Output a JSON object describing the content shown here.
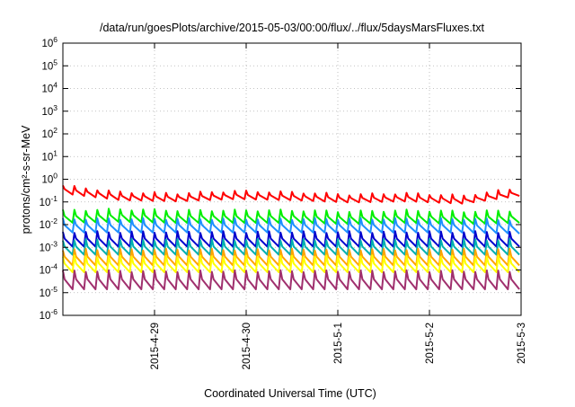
{
  "chart_data": {
    "type": "line",
    "title": "/data/run/goesPlots/archive/2015-05-03/00:00/flux/../flux/5daysMarsFluxes.txt",
    "xlabel": "Coordinated Universal Time (UTC)",
    "ylabel": "protons/cm²-s-sr-MeV",
    "y_scale": "log",
    "ylim_exponents": [
      -6,
      6
    ],
    "y_ticks": [
      "10^-6",
      "10^-5",
      "10^-4",
      "10^-3",
      "10^-2",
      "10^-1",
      "10^0",
      "10^1",
      "10^2",
      "10^3",
      "10^4",
      "10^5",
      "10^6"
    ],
    "x_range_days": [
      "2015-04-28",
      "2015-05-03"
    ],
    "x_ticks": [
      "2015-4-29",
      "2015-4-30",
      "2015-5-1",
      "2015-5-2",
      "2015-5-3"
    ],
    "grid": true,
    "legend": "none",
    "cycles_per_day": 8,
    "series": [
      {
        "color": "#ff0000",
        "log_base": -0.55,
        "amp": 0.35,
        "trend": [
          0.1,
          -0.2,
          -0.25,
          -0.15,
          -0.2,
          -0.3,
          -0.25,
          -0.35,
          0.0
        ]
      },
      {
        "color": "#00ee00",
        "log_base": -1.65,
        "amp": 0.55,
        "trend": [
          0.0,
          0.05,
          0.0,
          0.0,
          0.0,
          -0.05,
          0.0,
          -0.05,
          0.0
        ]
      },
      {
        "color": "#1e90ff",
        "log_base": -2.05,
        "amp": 0.6,
        "trend": [
          0.0,
          0.0,
          0.0,
          0.0,
          0.0,
          0.0,
          0.0,
          0.0,
          -0.05
        ]
      },
      {
        "color": "#0000cd",
        "log_base": -2.65,
        "amp": 0.65,
        "trend": [
          0.0,
          0.0,
          0.0,
          0.0,
          0.0,
          0.0,
          0.0,
          0.0,
          0.0
        ]
      },
      {
        "color": "#00b0b0",
        "log_base": -3.0,
        "amp": 0.65,
        "trend": [
          0.0,
          0.0,
          0.0,
          0.0,
          0.0,
          0.0,
          0.0,
          0.0,
          0.0
        ]
      },
      {
        "color": "#ffa500",
        "log_base": -3.45,
        "amp": 0.7,
        "trend": [
          0.0,
          0.0,
          0.0,
          0.0,
          0.0,
          0.0,
          0.0,
          0.0,
          0.0
        ]
      },
      {
        "color": "#ffff00",
        "log_base": -3.75,
        "amp": 0.7,
        "trend": [
          0.0,
          0.0,
          0.0,
          0.0,
          0.0,
          0.0,
          0.0,
          0.0,
          0.0
        ]
      },
      {
        "color": "#a0306e",
        "log_base": -4.45,
        "amp": 0.8,
        "trend": [
          0.0,
          0.0,
          0.0,
          0.0,
          0.0,
          0.0,
          0.0,
          0.0,
          0.0
        ]
      }
    ]
  }
}
